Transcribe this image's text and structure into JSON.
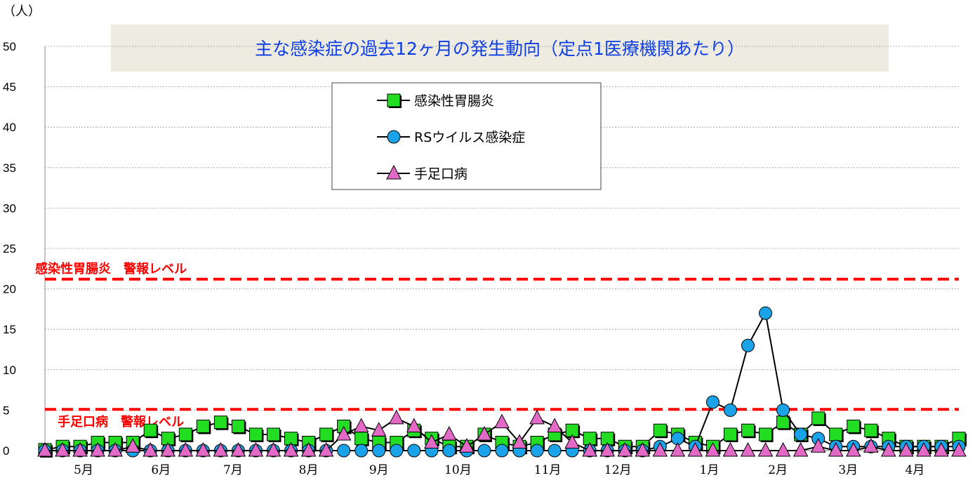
{
  "chart_data": {
    "type": "line",
    "title": "主な感染症の過去12ヶ月の発生動向（定点1医療機関あたり）",
    "unit_label": "（人）",
    "ylim": [
      0,
      50
    ],
    "yticks": [
      "0",
      "5",
      "10",
      "15",
      "20",
      "25",
      "30",
      "35",
      "40",
      "45",
      "50"
    ],
    "xlim": [
      0,
      52
    ],
    "month_labels": [
      {
        "label": "5月",
        "x": 2.2
      },
      {
        "label": "6月",
        "x": 6.6
      },
      {
        "label": "7月",
        "x": 10.7
      },
      {
        "label": "8月",
        "x": 15.0
      },
      {
        "label": "9月",
        "x": 19.0
      },
      {
        "label": "10月",
        "x": 23.5
      },
      {
        "label": "11月",
        "x": 28.6
      },
      {
        "label": "12月",
        "x": 32.6
      },
      {
        "label": "1月",
        "x": 37.8
      },
      {
        "label": "2月",
        "x": 41.7
      },
      {
        "label": "3月",
        "x": 45.7
      },
      {
        "label": "4月",
        "x": 49.5
      }
    ],
    "grid": true,
    "legend_position": "top-center",
    "series": [
      {
        "name": "感染性胃腸炎",
        "marker": "square",
        "color": "#22dd22",
        "values": [
          0.1,
          0.5,
          0.5,
          1.0,
          1.0,
          1.0,
          2.5,
          1.5,
          2.0,
          3.0,
          3.5,
          3.0,
          2.0,
          2.0,
          1.5,
          1.0,
          2.0,
          3.0,
          1.5,
          1.0,
          1.0,
          2.5,
          1.5,
          0.5,
          0.5,
          2.0,
          1.0,
          0.5,
          1.0,
          2.0,
          2.5,
          1.5,
          1.5,
          0.5,
          0.5,
          2.5,
          2.0,
          1.0,
          0.5,
          2.0,
          2.5,
          2.0,
          3.5,
          2.0,
          4.0,
          2.0,
          3.0,
          2.5,
          1.5,
          0.5,
          0.5,
          0.5,
          1.5
        ]
      },
      {
        "name": "RSウイルス感染症",
        "marker": "circle",
        "color": "#1aa3e8",
        "values": [
          0,
          0,
          0,
          0,
          0,
          0,
          0,
          0,
          0,
          0,
          0,
          0,
          0,
          0,
          0,
          0,
          0,
          0,
          0,
          0,
          0,
          0,
          0,
          0,
          0,
          0,
          0,
          0,
          0,
          0,
          0,
          0,
          0,
          0,
          0,
          0.5,
          1.5,
          0.5,
          6,
          5,
          13,
          17,
          5,
          2,
          1.5,
          0.5,
          0.5,
          0.5,
          0.5,
          0.5,
          0.5,
          0.5,
          0.5
        ]
      },
      {
        "name": "手足口病",
        "marker": "triangle",
        "color": "#e26ac6",
        "values": [
          0,
          0,
          0,
          0,
          0,
          0.5,
          0,
          0,
          0,
          0,
          0,
          0,
          0,
          0,
          0,
          0,
          0,
          2,
          3,
          2.5,
          4,
          3,
          1,
          2,
          0.5,
          2,
          3.5,
          1,
          4,
          3,
          1,
          0,
          0,
          0,
          0,
          0,
          0,
          0,
          0,
          0,
          0,
          0,
          0,
          0,
          0.5,
          0,
          0,
          0.5,
          0,
          0,
          0,
          0,
          0
        ]
      }
    ],
    "alert_levels": [
      {
        "label": "感染性胃腸炎　警報レベル",
        "value": 21.2
      },
      {
        "label": "手足口病　警報レベル",
        "value": 5.1
      }
    ]
  }
}
